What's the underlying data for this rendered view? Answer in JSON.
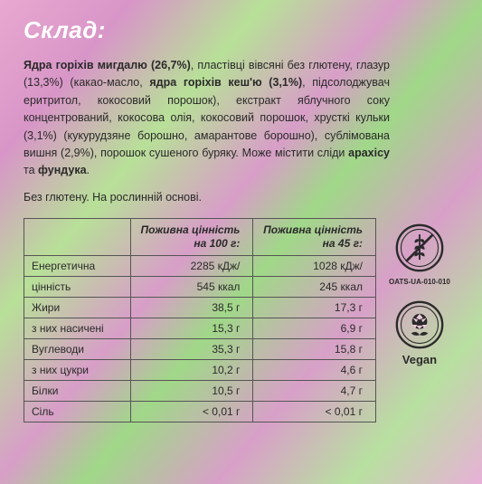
{
  "title": "Склад:",
  "ingredients_html": "<b>Ядра горіхів мигдалю (26,7%)</b>, пластівці вівсяні без глютену, глазур (13,3%) (какао-масло, <b>ядра горіхів кеш'ю (3,1%)</b>, підсолоджувач еритритол, кокосовий порошок), екстракт яблучного соку концентрований, кокосова олія, кокосовий порошок, хрусткі кульки (3,1%) (кукурудзяне борошно, амарантове борошно), сублімована вишня (2,9%), порошок сушеного буряку. Може містити сліди <b>арахісу</b> та <b>фундука</b>.",
  "note": "Без глютену. На рослинній основі.",
  "table": {
    "header_label": "",
    "header_100": "Поживна цінність на 100 г:",
    "header_45": "Поживна цінність на 45 г:",
    "rows": [
      {
        "label": "Енергетична",
        "v100": "2285 кДж/",
        "v45": "1028 кДж/"
      },
      {
        "label": "цінність",
        "v100": "545 ккал",
        "v45": "245 ккал"
      },
      {
        "label": "Жири",
        "v100": "38,5 г",
        "v45": "17,3 г"
      },
      {
        "label": "з них насичені",
        "v100": "15,3 г",
        "v45": "6,9 г"
      },
      {
        "label": "Вуглеводи",
        "v100": "35,3 г",
        "v45": "15,8 г"
      },
      {
        "label": "з них цукри",
        "v100": "10,2 г",
        "v45": "4,6 г"
      },
      {
        "label": "Білки",
        "v100": "10,5 г",
        "v45": "4,7 г"
      },
      {
        "label": "Сіль",
        "v100": "< 0,01 г",
        "v45": "< 0,01 г"
      }
    ]
  },
  "cert": {
    "gluten_free_code": "OATS-UA-010-010",
    "vegan_label": "Vegan"
  },
  "colors": {
    "title": "#ffffff",
    "text": "#2a2a2a",
    "border": "#555555"
  }
}
